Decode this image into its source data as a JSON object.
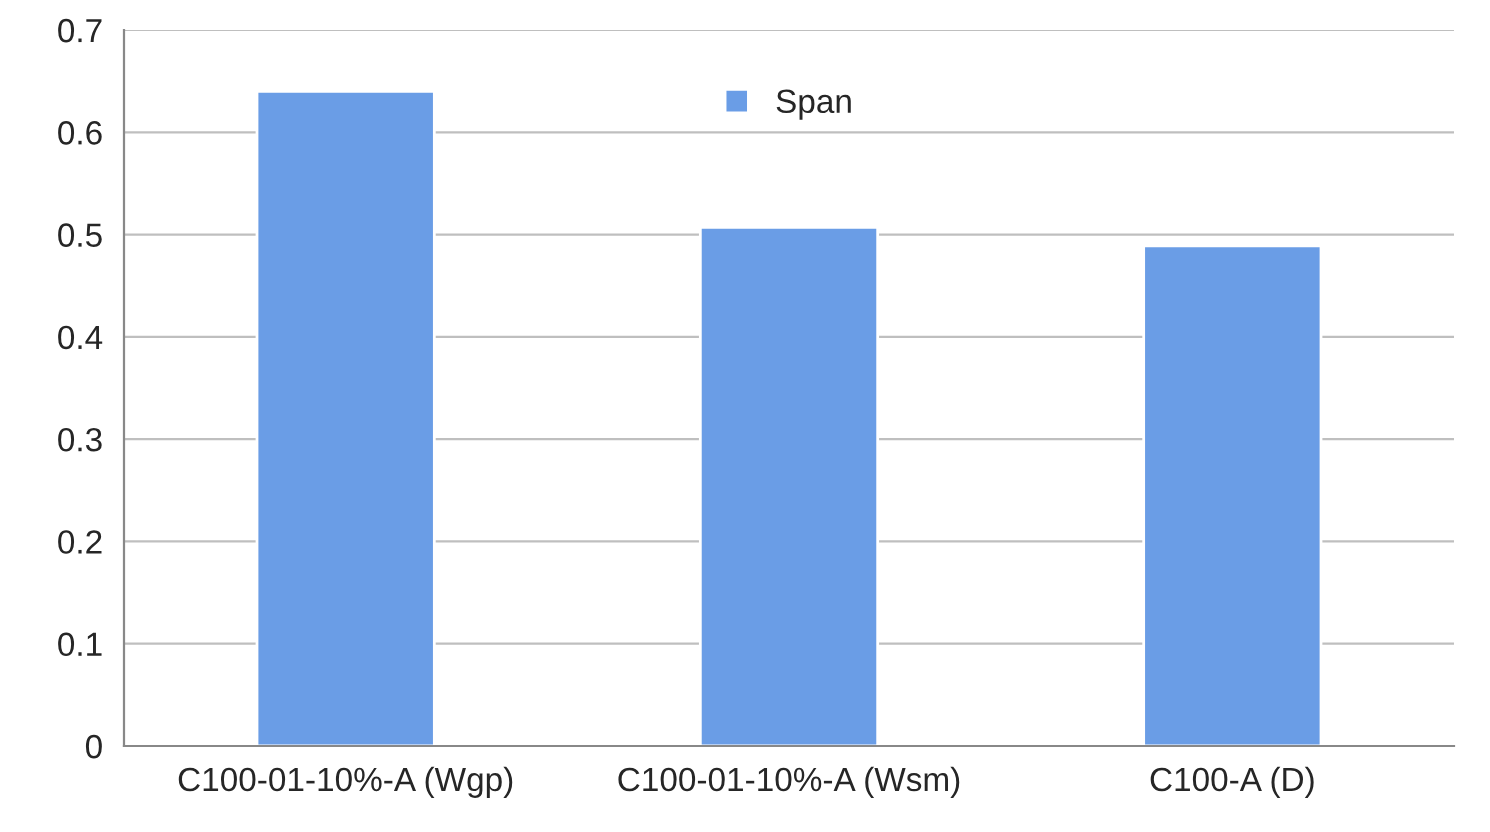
{
  "chart_data": {
    "type": "bar",
    "categories": [
      "C100-01-10%-A (Wgp)",
      "C100-01-10%-A (Wsm)",
      "C100-A (D)"
    ],
    "series": [
      {
        "name": "Span",
        "color": "#6a9de6",
        "values": [
          0.64,
          0.507,
          0.489
        ]
      }
    ],
    "ylim": [
      0,
      0.7
    ],
    "yticks": [
      0,
      0.1,
      0.2,
      0.3,
      0.4,
      0.5,
      0.6,
      0.7
    ],
    "grid": "y",
    "legend": "top"
  }
}
